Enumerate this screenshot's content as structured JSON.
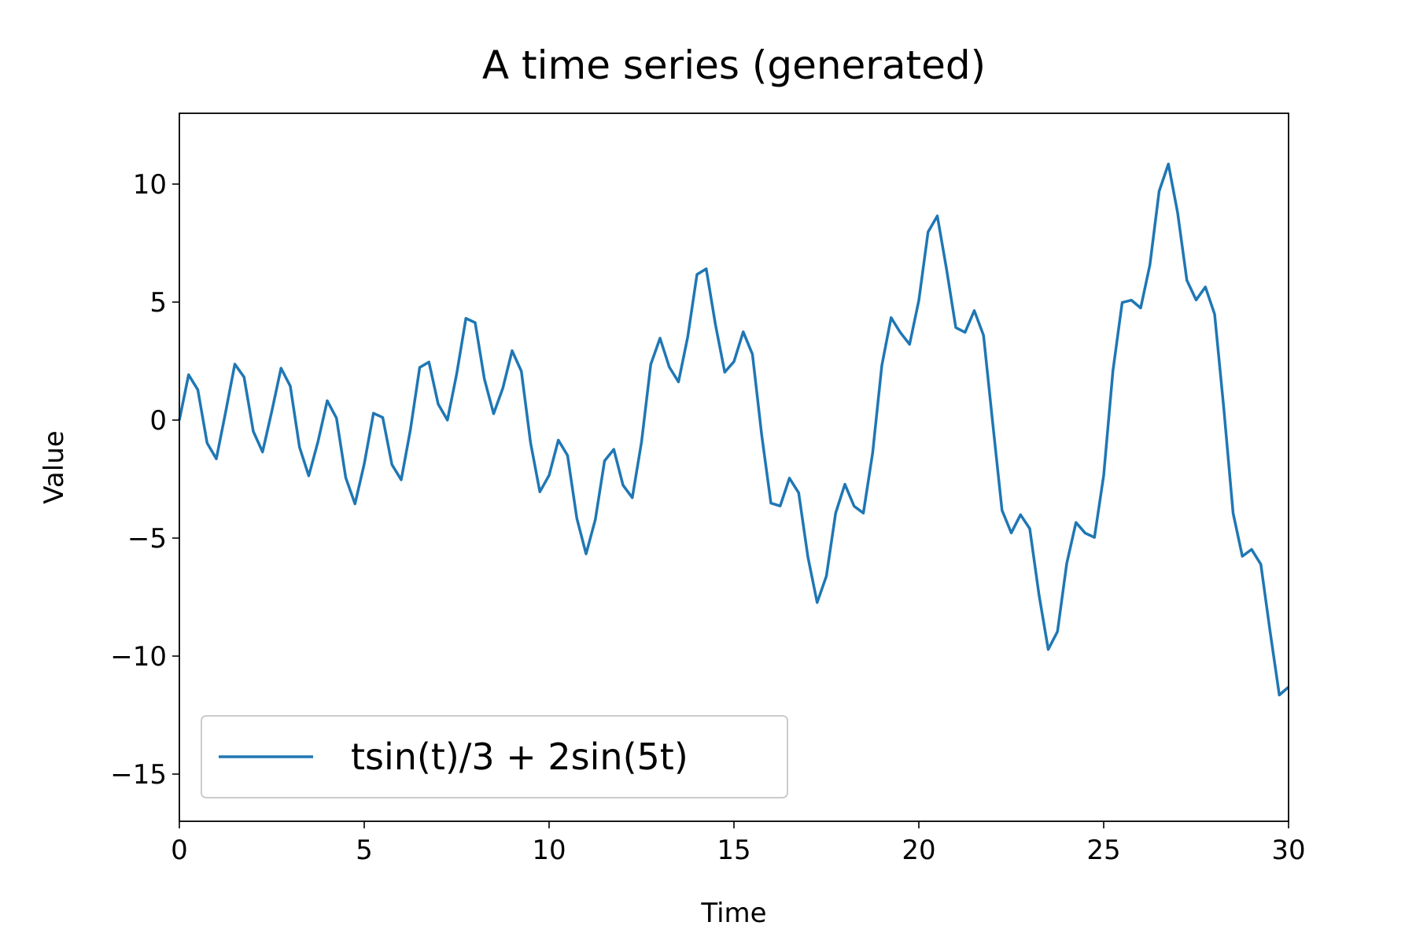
{
  "chart_data": {
    "type": "line",
    "title": "A time series (generated)",
    "x_label": "Time",
    "y_label": "Value",
    "x": [
      0,
      0.25,
      0.5,
      0.75,
      1,
      1.25,
      1.5,
      1.75,
      2,
      2.25,
      2.5,
      2.75,
      3,
      3.25,
      3.5,
      3.75,
      4,
      4.25,
      4.5,
      4.75,
      5,
      5.25,
      5.5,
      5.75,
      6,
      6.25,
      6.5,
      6.75,
      7,
      7.25,
      7.5,
      7.75,
      8,
      8.25,
      8.5,
      8.75,
      9,
      9.25,
      9.5,
      9.75,
      10,
      10.25,
      10.5,
      10.75,
      11,
      11.25,
      11.5,
      11.75,
      12,
      12.25,
      12.5,
      12.75,
      13,
      13.25,
      13.5,
      13.75,
      14,
      14.25,
      14.5,
      14.75,
      15,
      15.25,
      15.5,
      15.75,
      16,
      16.25,
      16.5,
      16.75,
      17,
      17.25,
      17.5,
      17.75,
      18,
      18.25,
      18.5,
      18.75,
      19,
      19.25,
      19.5,
      19.75,
      20,
      20.25,
      20.5,
      20.75,
      21,
      21.25,
      21.5,
      21.75,
      22,
      22.25,
      22.5,
      22.75,
      23,
      23.25,
      23.5,
      23.75,
      24,
      24.25,
      24.5,
      24.75,
      25,
      25.25,
      25.5,
      25.75,
      26,
      26.25,
      26.5,
      26.75,
      27,
      27.25,
      27.5,
      27.75,
      28,
      28.25,
      28.5,
      28.75,
      29,
      29.25,
      29.5,
      29.75,
      30
    ],
    "series": [
      {
        "name": "tsin(t)/3 + 2sin(5t)",
        "color": "#1f77b4",
        "values": [
          0,
          1.92,
          1.28,
          -0.97,
          -1.64,
          0.33,
          2.37,
          1.82,
          -0.48,
          -1.35,
          0.37,
          2.2,
          1.44,
          -1.15,
          -2.36,
          -0.91,
          0.82,
          0.08,
          -2.44,
          -3.55,
          -1.86,
          0.29,
          0.11,
          -1.89,
          -2.53,
          -0.4,
          2.23,
          2.46,
          0.68,
          0,
          1.95,
          4.31,
          4.13,
          1.74,
          0.27,
          1.36,
          2.94,
          2.07,
          -0.97,
          -3.04,
          -2.34,
          -0.85,
          -1.5,
          -4.16,
          -5.67,
          -4.22,
          -1.73,
          -1.24,
          -2.76,
          -3.29,
          -0.93,
          2.36,
          3.47,
          2.25,
          1.62,
          3.53,
          6.17,
          6.41,
          4.04,
          2.03,
          2.48,
          3.74,
          2.79,
          -0.63,
          -3.52,
          -3.64,
          -2.46,
          -3.08,
          -5.8,
          -7.73,
          -6.61,
          -3.94,
          -2.72,
          -3.65,
          -3.94,
          -1.4,
          2.32,
          4.34,
          3.71,
          3.21,
          5.07,
          7.97,
          8.65,
          6.39,
          3.92,
          3.72,
          4.64,
          3.59,
          -0.15,
          -3.82,
          -4.78,
          -4.01,
          -4.6,
          -7.4,
          -9.72,
          -8.96,
          -6.08,
          -4.34,
          -4.79,
          -4.97,
          -2.34,
          2.09,
          4.98,
          5.08,
          4.75,
          6.58,
          9.7,
          10.85,
          8.78,
          5.92,
          5.09,
          5.64,
          4.49,
          0.47,
          -3.94,
          -5.77,
          -5.48,
          -6.11,
          -8.95,
          -11.65,
          -11.31
        ]
      }
    ],
    "xlim": [
      0,
      30
    ],
    "ylim": [
      -17,
      13
    ],
    "xticks": [
      0,
      5,
      10,
      15,
      20,
      25,
      30
    ],
    "yticks": [
      {
        "value": -15,
        "label": "−15"
      },
      {
        "value": -10,
        "label": "−10"
      },
      {
        "value": -5,
        "label": "−5"
      },
      0,
      5,
      10
    ],
    "grid": false,
    "legend_loc": "lower left"
  }
}
